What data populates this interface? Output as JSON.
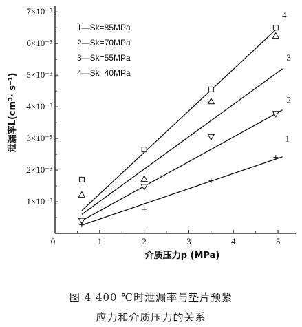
{
  "chart_data": {
    "type": "scatter",
    "xlabel": "介质压力p (MPa)",
    "ylabel": "泄漏率L(cm³· s⁻¹)",
    "xlim": [
      0,
      5.4
    ],
    "ylim": [
      0,
      0.0072
    ],
    "x_ticks": [
      0,
      1,
      2,
      3,
      4,
      5
    ],
    "y_ticks": [
      {
        "value": 0.001,
        "label": "1×10⁻³"
      },
      {
        "value": 0.002,
        "label": "2×10⁻³"
      },
      {
        "value": 0.003,
        "label": "3×10⁻³"
      },
      {
        "value": 0.004,
        "label": "4×10⁻³"
      },
      {
        "value": 0.005,
        "label": "5×10⁻³"
      },
      {
        "value": 0.006,
        "label": "6×10⁻³"
      },
      {
        "value": 0.007,
        "label": "7×10⁻³"
      }
    ],
    "legend": [
      "1—Sk=85MPa",
      "2—Sk=70MPa",
      "3—Sk=55MPa",
      "4—Sk=40MPa"
    ],
    "series": [
      {
        "name": "4—Sk=40MPa",
        "marker": "square",
        "label": "4",
        "x": [
          0.6,
          2.0,
          3.5,
          4.95
        ],
        "y": [
          0.0017,
          0.00265,
          0.00455,
          0.0065
        ],
        "fit": [
          [
            0.6,
            0.00072
          ],
          [
            5.0,
            0.0065
          ]
        ]
      },
      {
        "name": "3—Sk=55MPa",
        "marker": "triangle-up",
        "label": "3",
        "x": [
          0.6,
          2.0,
          3.5,
          4.95
        ],
        "y": [
          0.00122,
          0.00172,
          0.00417,
          0.00624
        ],
        "fit": [
          [
            0.6,
            0.0006
          ],
          [
            5.1,
            0.0052
          ]
        ]
      },
      {
        "name": "2—Sk=70MPa",
        "marker": "triangle-down",
        "label": "2",
        "x": [
          0.6,
          2.0,
          3.5,
          4.95
        ],
        "y": [
          0.0004,
          0.00147,
          0.00305,
          0.00378
        ],
        "fit": [
          [
            0.6,
            0.0004
          ],
          [
            5.1,
            0.0039
          ]
        ]
      },
      {
        "name": "1—Sk=85MPa",
        "marker": "plus",
        "label": "1",
        "x": [
          0.6,
          2.0,
          3.5,
          4.95
        ],
        "y": [
          0.00027,
          0.00076,
          0.00166,
          0.0024
        ],
        "fit": [
          [
            0.6,
            0.00026
          ],
          [
            5.1,
            0.00242
          ]
        ]
      }
    ]
  },
  "caption": {
    "line1": "图 4   400 ℃时泄漏率与垫片预紧",
    "line2": "应力和介质压力的关系"
  }
}
